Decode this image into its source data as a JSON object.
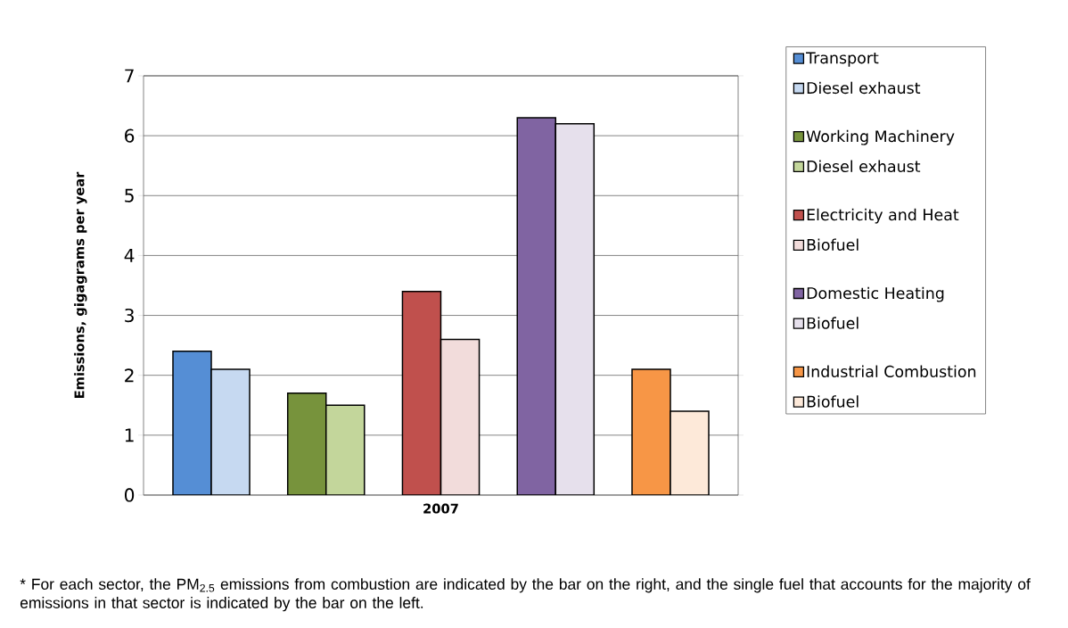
{
  "chart_data": {
    "type": "bar",
    "ylabel": "Emissions, gigagrams per year",
    "categories": [
      "2007"
    ],
    "series": [
      {
        "name": "Transport",
        "color": "#558ed5",
        "values": [
          2.4
        ]
      },
      {
        "name": "Diesel exhaust",
        "color": "#c6d9f1",
        "values": [
          2.1
        ]
      },
      {
        "name": "Working Machinery",
        "color": "#77933c",
        "values": [
          1.7
        ]
      },
      {
        "name": "Diesel exhaust",
        "color": "#c3d69b",
        "values": [
          1.5
        ]
      },
      {
        "name": "Electricity and Heat",
        "color": "#c0504d",
        "values": [
          3.4
        ]
      },
      {
        "name": "Biofuel",
        "color": "#f2dcdb",
        "values": [
          2.6
        ]
      },
      {
        "name": "Domestic Heating",
        "color": "#8064a2",
        "values": [
          6.3
        ]
      },
      {
        "name": "Biofuel",
        "color": "#e6e0ec",
        "values": [
          6.2
        ]
      },
      {
        "name": "Industrial Combustion",
        "color": "#f79646",
        "values": [
          2.1
        ]
      },
      {
        "name": "Biofuel",
        "color": "#fde9d9",
        "values": [
          1.4
        ]
      }
    ],
    "ylim": [
      0,
      7
    ],
    "yticks": [
      0,
      1,
      2,
      3,
      4,
      5,
      6,
      7
    ],
    "grid": "y",
    "legend": "right",
    "annotations": [
      "*  For each sector, the PM$_{2.5}$ emissions from combustion are indicated by the bar on the right, and the single fuel that accounts for the majority of emissions in that sector is indicated by the bar on the left."
    ]
  }
}
